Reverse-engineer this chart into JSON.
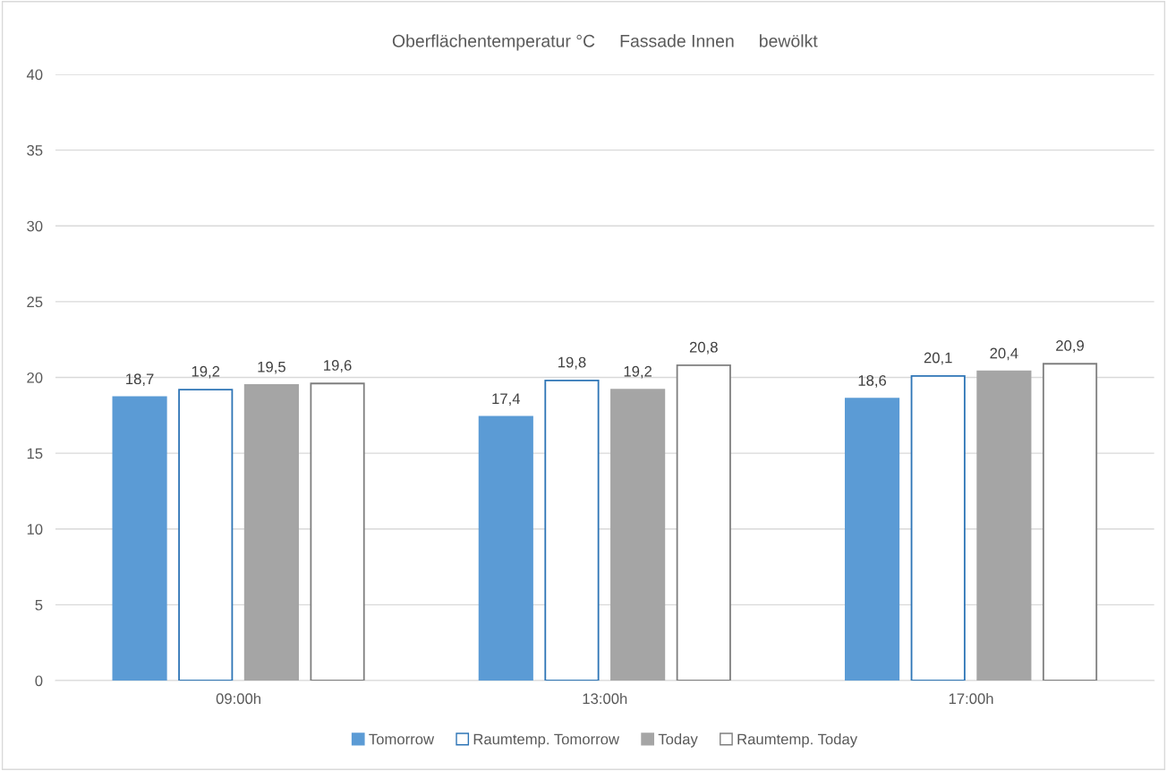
{
  "chart_data": {
    "type": "bar",
    "title": "Oberflächentemperatur °C     Fassade Innen     bewölkt",
    "categories": [
      "09:00h",
      "13:00h",
      "17:00h"
    ],
    "series": [
      {
        "name": "Tomorrow",
        "color": "#5b9bd5",
        "values": [
          18.7,
          17.4,
          18.6
        ],
        "value_labels": [
          "18,7",
          "17,4",
          "18,6"
        ]
      },
      {
        "name": "Raumtemp. Tomorrow",
        "color": "#2e75b6",
        "values": [
          19.2,
          19.8,
          20.1
        ],
        "value_labels": [
          "19,2",
          "19,8",
          "20,1"
        ]
      },
      {
        "name": "Today",
        "color": "#a5a5a5",
        "values": [
          19.5,
          19.2,
          20.4
        ],
        "value_labels": [
          "19,5",
          "19,2",
          "20,4"
        ]
      },
      {
        "name": "Raumtemp. Today",
        "color": "#7f7f7f",
        "values": [
          19.6,
          20.8,
          20.9
        ],
        "value_labels": [
          "19,6",
          "20,8",
          "20,9"
        ]
      }
    ],
    "ylim": [
      0,
      40
    ],
    "yticks": [
      0,
      5,
      10,
      15,
      20,
      25,
      30,
      35,
      40
    ],
    "grid": "y",
    "legend": "bottom"
  }
}
